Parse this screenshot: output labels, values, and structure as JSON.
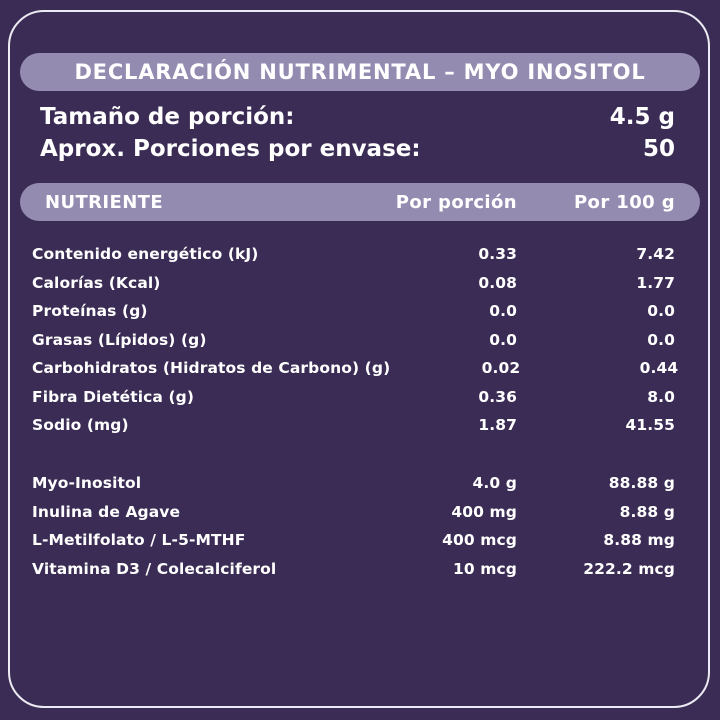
{
  "colors": {
    "background": "#3A2C54",
    "pill": "#948BB1",
    "text": "#FFFFFF",
    "border": "#ECEAF2"
  },
  "header": {
    "title": "DECLARACIÓN NUTRIMENTAL – MYO INOSITOL"
  },
  "serving": {
    "rows": [
      {
        "label": "Tamaño de porción:",
        "value": "4.5 g"
      },
      {
        "label": "Aprox. Porciones por envase:",
        "value": "50"
      }
    ]
  },
  "table": {
    "header": {
      "nutrient": "NUTRIENTE",
      "per_serving": "Por porción",
      "per_100g": "Por 100 g"
    },
    "main_rows": [
      {
        "label": "Contenido energético (kJ)",
        "per_serving": "0.33",
        "per_100g": "7.42"
      },
      {
        "label": "Calorías (Kcal)",
        "per_serving": "0.08",
        "per_100g": "1.77"
      },
      {
        "label": "Proteínas (g)",
        "per_serving": "0.0",
        "per_100g": "0.0"
      },
      {
        "label": "Grasas (Lípidos) (g)",
        "per_serving": "0.0",
        "per_100g": "0.0"
      },
      {
        "label": "Carbohidratos (Hidratos de Carbono) (g)",
        "per_serving": "0.02",
        "per_100g": "0.44"
      },
      {
        "label": "Fibra Dietética (g)",
        "per_serving": "0.36",
        "per_100g": "8.0"
      },
      {
        "label": "Sodio (mg)",
        "per_serving": "1.87",
        "per_100g": "41.55"
      }
    ],
    "supplement_rows": [
      {
        "label": "Myo-Inositol",
        "per_serving": "4.0 g",
        "per_100g": "88.88 g"
      },
      {
        "label": "Inulina de Agave",
        "per_serving": "400 mg",
        "per_100g": "8.88 g"
      },
      {
        "label": "L-Metilfolato / L-5-MTHF",
        "per_serving": "400 mcg",
        "per_100g": "8.88 mg"
      },
      {
        "label": "Vitamina D3 / Colecalciferol",
        "per_serving": "10 mcg",
        "per_100g": "222.2 mcg"
      }
    ]
  }
}
